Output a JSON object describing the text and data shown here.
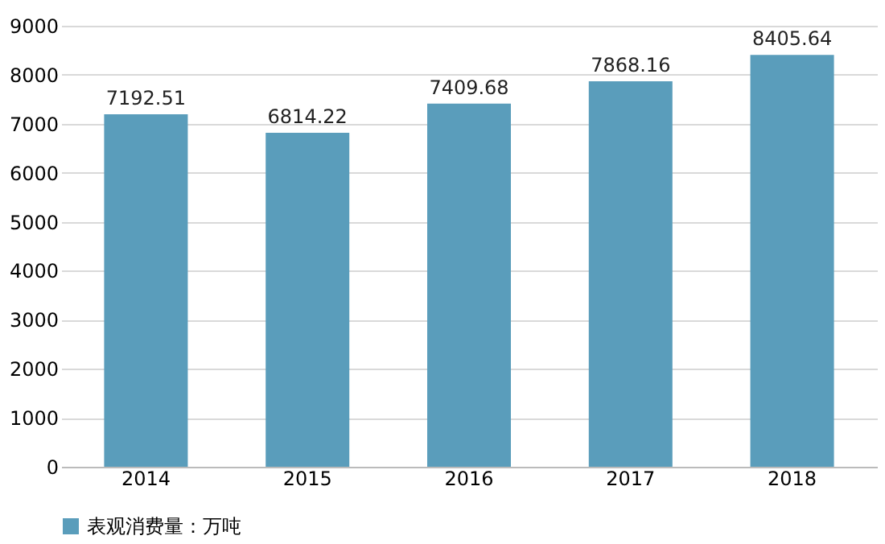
{
  "chart_data": {
    "type": "bar",
    "categories": [
      "2014",
      "2015",
      "2016",
      "2017",
      "2018"
    ],
    "series": [
      {
        "name": "表观消费量：万吨",
        "color": "#5a9dbb",
        "values": [
          7192.51,
          6814.22,
          7409.68,
          7868.16,
          8405.64
        ]
      }
    ],
    "ylim": [
      0,
      9000
    ],
    "yticks": [
      0,
      1000,
      2000,
      3000,
      4000,
      5000,
      6000,
      7000,
      8000,
      9000
    ],
    "grid": "y",
    "legend": "bottom",
    "data_labels": true
  }
}
